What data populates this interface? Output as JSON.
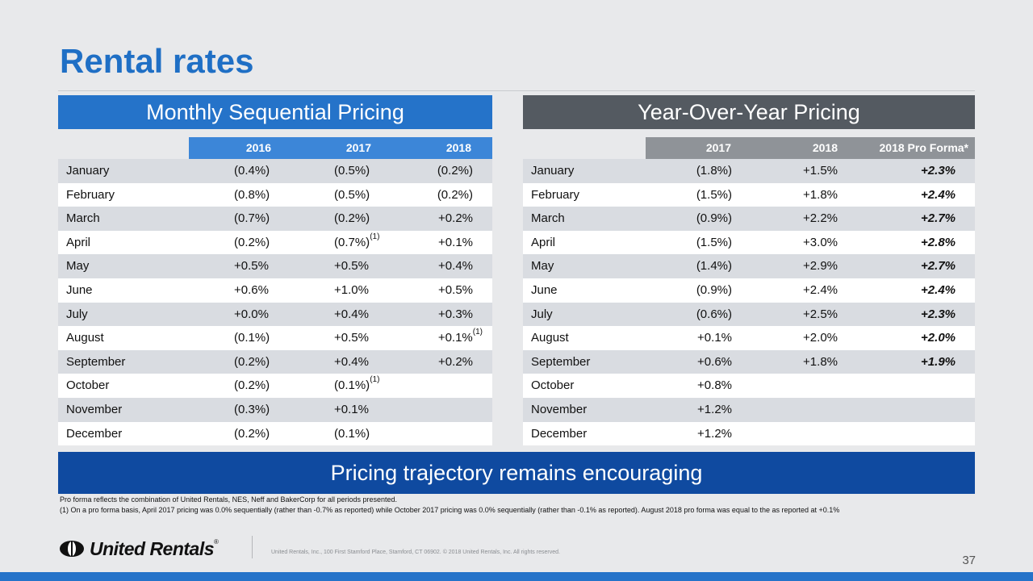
{
  "title": "Rental rates",
  "left": {
    "header": "Monthly Sequential Pricing",
    "columns": [
      "2016",
      "2017",
      "2018"
    ],
    "rows": [
      {
        "month": "January",
        "y2016": "(0.4%)",
        "y2017": "(0.5%)",
        "y2017_note": "",
        "y2018": "(0.2%)",
        "y2018_note": ""
      },
      {
        "month": "February",
        "y2016": "(0.8%)",
        "y2017": "(0.5%)",
        "y2017_note": "",
        "y2018": "(0.2%)",
        "y2018_note": ""
      },
      {
        "month": "March",
        "y2016": "(0.7%)",
        "y2017": "(0.2%)",
        "y2017_note": "",
        "y2018": "+0.2%",
        "y2018_note": ""
      },
      {
        "month": "April",
        "y2016": "(0.2%)",
        "y2017": "(0.7%)",
        "y2017_note": "(1)",
        "y2018": "+0.1%",
        "y2018_note": ""
      },
      {
        "month": "May",
        "y2016": "+0.5%",
        "y2017": "+0.5%",
        "y2017_note": "",
        "y2018": "+0.4%",
        "y2018_note": ""
      },
      {
        "month": "June",
        "y2016": "+0.6%",
        "y2017": "+1.0%",
        "y2017_note": "",
        "y2018": "+0.5%",
        "y2018_note": ""
      },
      {
        "month": "July",
        "y2016": "+0.0%",
        "y2017": "+0.4%",
        "y2017_note": "",
        "y2018": "+0.3%",
        "y2018_note": ""
      },
      {
        "month": "August",
        "y2016": "(0.1%)",
        "y2017": "+0.5%",
        "y2017_note": "",
        "y2018": "+0.1%",
        "y2018_note": "(1)"
      },
      {
        "month": "September",
        "y2016": "(0.2%)",
        "y2017": "+0.4%",
        "y2017_note": "",
        "y2018": "+0.2%",
        "y2018_note": ""
      },
      {
        "month": "October",
        "y2016": "(0.2%)",
        "y2017": "(0.1%)",
        "y2017_note": "(1)",
        "y2018": "",
        "y2018_note": ""
      },
      {
        "month": "November",
        "y2016": "(0.3%)",
        "y2017": "+0.1%",
        "y2017_note": "",
        "y2018": "",
        "y2018_note": ""
      },
      {
        "month": "December",
        "y2016": "(0.2%)",
        "y2017": "(0.1%)",
        "y2017_note": "",
        "y2018": "",
        "y2018_note": ""
      }
    ]
  },
  "right": {
    "header": "Year-Over-Year Pricing",
    "columns": [
      "2017",
      "2018",
      "2018 Pro Forma*"
    ],
    "rows": [
      {
        "month": "January",
        "y2017": "(1.8%)",
        "y2018": "+1.5%",
        "pf": "+2.3%"
      },
      {
        "month": "February",
        "y2017": "(1.5%)",
        "y2018": "+1.8%",
        "pf": "+2.4%"
      },
      {
        "month": "March",
        "y2017": "(0.9%)",
        "y2018": "+2.2%",
        "pf": "+2.7%"
      },
      {
        "month": "April",
        "y2017": "(1.5%)",
        "y2018": "+3.0%",
        "pf": "+2.8%"
      },
      {
        "month": "May",
        "y2017": "(1.4%)",
        "y2018": "+2.9%",
        "pf": "+2.7%"
      },
      {
        "month": "June",
        "y2017": "(0.9%)",
        "y2018": "+2.4%",
        "pf": "+2.4%"
      },
      {
        "month": "July",
        "y2017": "(0.6%)",
        "y2018": "+2.5%",
        "pf": "+2.3%"
      },
      {
        "month": "August",
        "y2017": "+0.1%",
        "y2018": "+2.0%",
        "pf": "+2.0%"
      },
      {
        "month": "September",
        "y2017": "+0.6%",
        "y2018": "+1.8%",
        "pf": "+1.9%"
      },
      {
        "month": "October",
        "y2017": "+0.8%",
        "y2018": "",
        "pf": ""
      },
      {
        "month": "November",
        "y2017": "+1.2%",
        "y2018": "",
        "pf": ""
      },
      {
        "month": "December",
        "y2017": "+1.2%",
        "y2018": "",
        "pf": ""
      }
    ]
  },
  "banner": "Pricing trajectory remains encouraging",
  "footnotes": {
    "line1": "Pro forma reflects the combination of United Rentals, NES, Neff and BakerCorp for all periods presented.",
    "line2": "(1) On a pro forma basis, April 2017 pricing was 0.0% sequentially (rather than -0.7% as reported) while October 2017 pricing was 0.0% sequentially (rather than -0.1% as reported). August 2018 pro forma was equal to the as reported at +0.1%"
  },
  "logo": {
    "text": "United Rentals",
    "mark": "®"
  },
  "copyright": "United Rentals, Inc., 100 First Stamford Place, Stamford, CT 06902. © 2018 United Rentals, Inc. All rights reserved.",
  "page_number": "37",
  "colors": {
    "title": "#1f6fc5",
    "left_header": "#2573c9",
    "right_header": "#545a61",
    "banner": "#0f4aa0",
    "row_shade": "#d9dce1"
  }
}
